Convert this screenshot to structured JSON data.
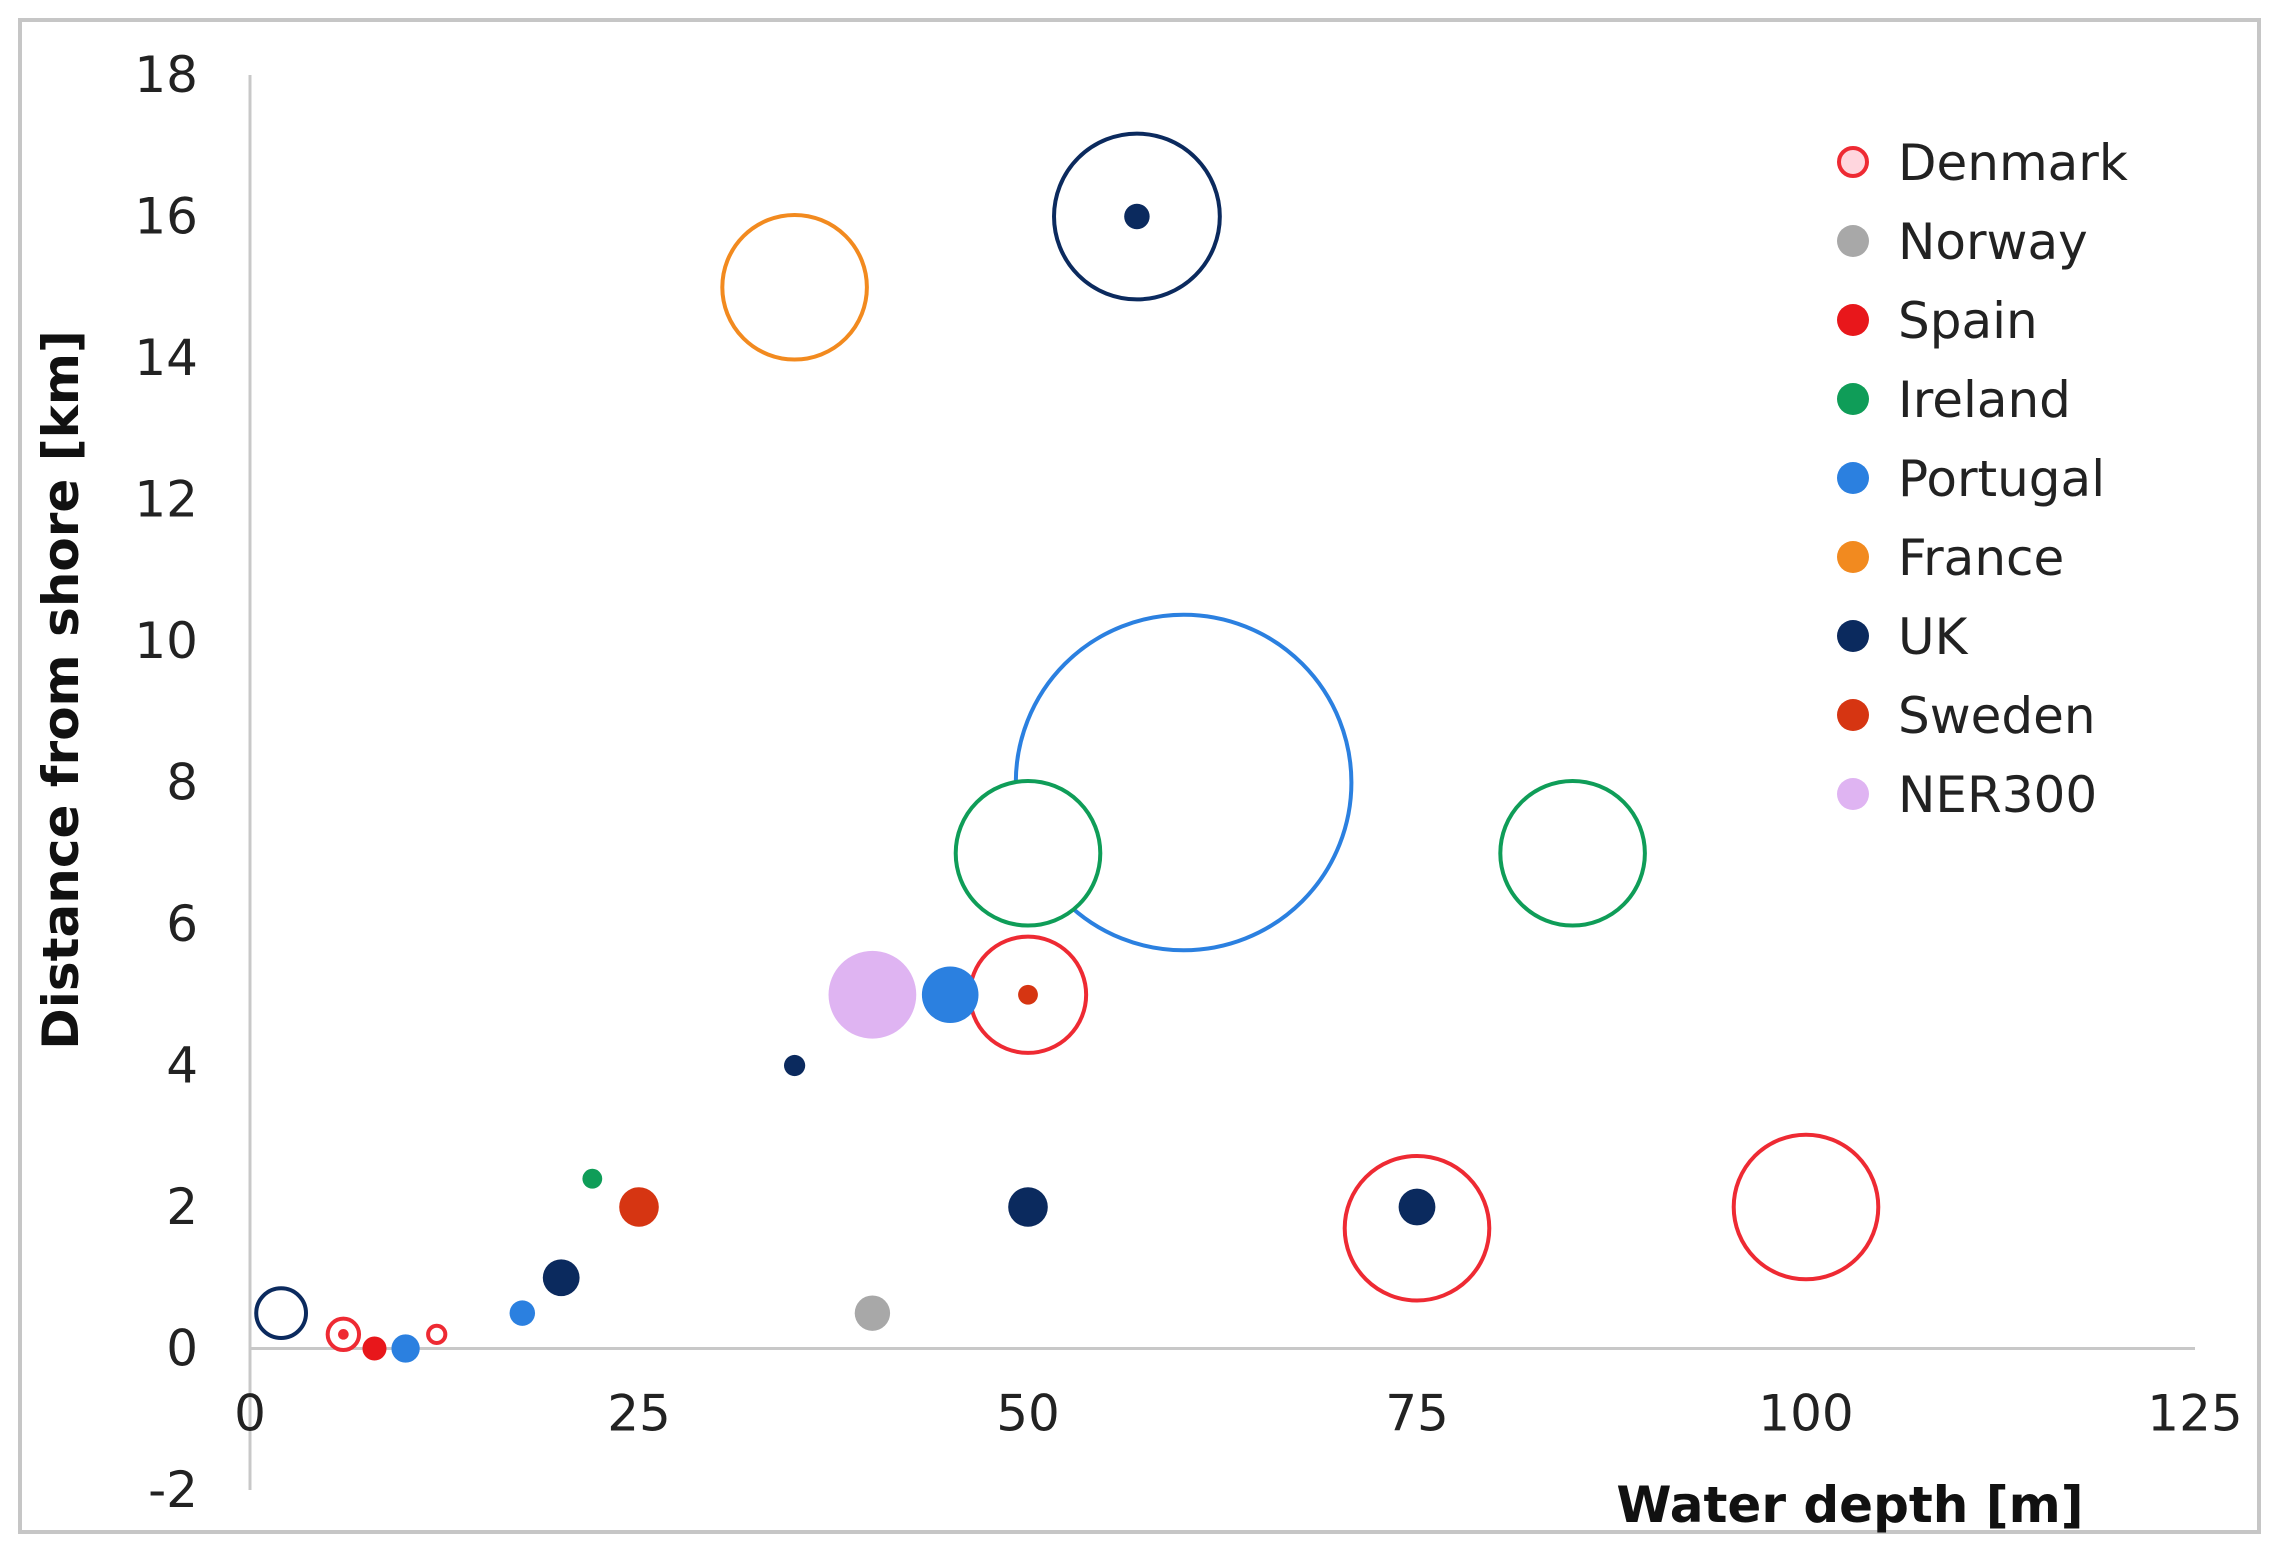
{
  "chart_data": {
    "type": "scatter",
    "variant": "bubble",
    "title": "",
    "xlabel": "Water depth [m]",
    "ylabel": "Distance  from shore [km]",
    "xlim": [
      0,
      125
    ],
    "ylim": [
      -2,
      18
    ],
    "x_ticks": [
      "0",
      "25",
      "50",
      "75",
      "100",
      "125"
    ],
    "y_ticks": [
      "-2",
      "0",
      "2",
      "4",
      "6",
      "8",
      "10",
      "12",
      "14",
      "16",
      "18"
    ],
    "grid": false,
    "legend_position": "top-right",
    "series": [
      {
        "name": "Denmark",
        "color": "#ee2a33",
        "points": [
          {
            "x": 6,
            "y": 0.2,
            "size": 0.25,
            "style": "ring-dot"
          },
          {
            "x": 12,
            "y": 0.2,
            "size": 0.15,
            "style": "ring"
          },
          {
            "x": 50,
            "y": 5,
            "size": 0.85,
            "style": "ring"
          },
          {
            "x": 75,
            "y": 1.7,
            "size": 1.05,
            "style": "ring"
          },
          {
            "x": 100,
            "y": 2,
            "size": 1.05,
            "style": "ring"
          }
        ]
      },
      {
        "name": "Norway",
        "color": "#a8a8a8",
        "points": [
          {
            "x": 40,
            "y": 0.5,
            "size": 0.25,
            "style": "filled"
          }
        ]
      },
      {
        "name": "Spain",
        "color": "#e8171b",
        "points": [
          {
            "x": 8,
            "y": 0,
            "size": 0.17,
            "style": "filled"
          }
        ]
      },
      {
        "name": "Ireland",
        "color": "#0f9d58",
        "points": [
          {
            "x": 22,
            "y": 2.4,
            "size": 0.14,
            "style": "filled"
          },
          {
            "x": 50,
            "y": 7,
            "size": 1.05,
            "style": "ring"
          },
          {
            "x": 85,
            "y": 7,
            "size": 1.05,
            "style": "ring"
          }
        ]
      },
      {
        "name": "Portugal",
        "color": "#2b80e0",
        "points": [
          {
            "x": 10,
            "y": 0,
            "size": 0.2,
            "style": "filled"
          },
          {
            "x": 17.5,
            "y": 0.5,
            "size": 0.18,
            "style": "filled"
          },
          {
            "x": 45,
            "y": 5,
            "size": 0.4,
            "style": "filled"
          },
          {
            "x": 60,
            "y": 8,
            "size": 2.4,
            "style": "ring"
          }
        ]
      },
      {
        "name": "France",
        "color": "#f28a1f",
        "points": [
          {
            "x": 35,
            "y": 15,
            "size": 1.05,
            "style": "ring"
          }
        ]
      },
      {
        "name": "UK",
        "color": "#0b2a5e",
        "points": [
          {
            "x": 2,
            "y": 0.5,
            "size": 0.38,
            "style": "ring"
          },
          {
            "x": 20,
            "y": 1,
            "size": 0.26,
            "style": "filled"
          },
          {
            "x": 35,
            "y": 4,
            "size": 0.15,
            "style": "filled"
          },
          {
            "x": 50,
            "y": 2,
            "size": 0.28,
            "style": "filled"
          },
          {
            "x": 75,
            "y": 2,
            "size": 0.26,
            "style": "filled"
          },
          {
            "x": 57,
            "y": 16,
            "size": 1.2,
            "style": "ring"
          },
          {
            "x": 57,
            "y": 16,
            "size": 0.18,
            "style": "filled"
          }
        ]
      },
      {
        "name": "Sweden",
        "color": "#d63512",
        "points": [
          {
            "x": 25,
            "y": 2,
            "size": 0.28,
            "style": "filled"
          },
          {
            "x": 50,
            "y": 5,
            "size": 0.14,
            "style": "filled"
          }
        ]
      },
      {
        "name": "NER300",
        "color": "#dfb4f2",
        "points": [
          {
            "x": 40,
            "y": 5,
            "size": 0.62,
            "style": "filled"
          }
        ]
      }
    ]
  }
}
